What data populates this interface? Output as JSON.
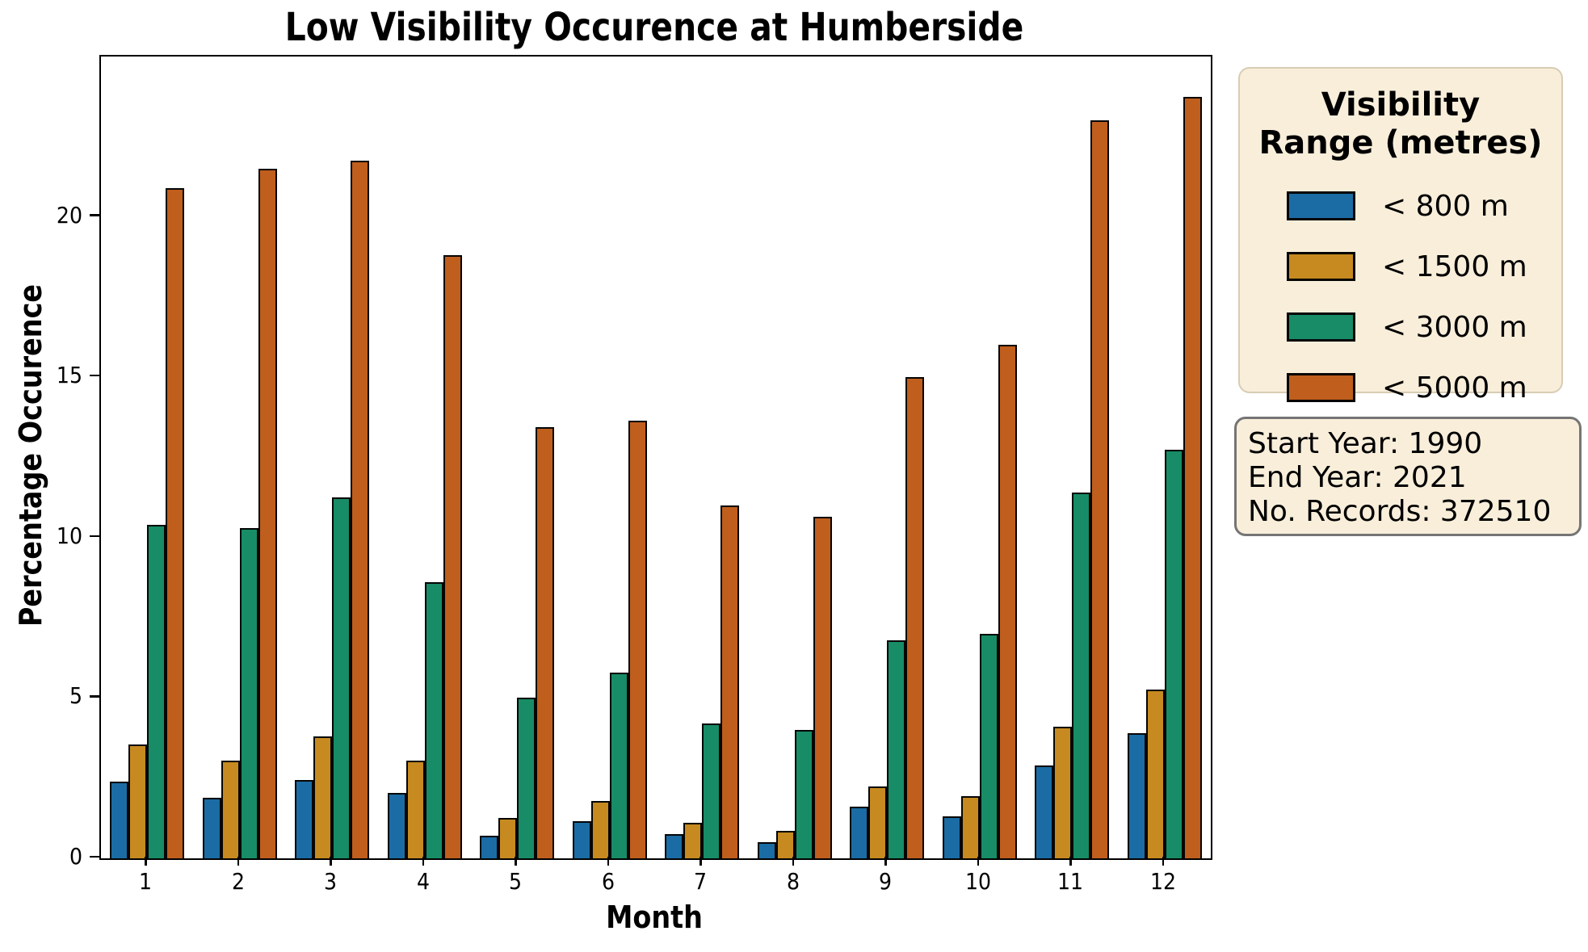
{
  "title": "Low Visibility Occurence at Humberside",
  "axes": {
    "xlabel": "Month",
    "ylabel": "Percentage Occurence",
    "y_ticks": [
      0,
      5,
      10,
      15,
      20
    ],
    "ymax": 25
  },
  "legend": {
    "title_line1": "Visibility",
    "title_line2": "Range (metres)",
    "items": [
      {
        "label": "< 800 m",
        "color": "#1B6CA4",
        "icon": "blue-swatch"
      },
      {
        "label": "< 1500 m",
        "color": "#C68A20",
        "icon": "gold-swatch"
      },
      {
        "label": "< 3000 m",
        "color": "#178C66",
        "icon": "green-swatch"
      },
      {
        "label": "< 5000 m",
        "color": "#BF5E1D",
        "icon": "orange-swatch"
      }
    ]
  },
  "info_box": {
    "lines": [
      "Start Year: 1990",
      "End Year: 2021",
      "No. Records: 372510"
    ]
  },
  "chart_data": {
    "type": "bar",
    "title": "Low Visibility Occurence at Humberside",
    "xlabel": "Month",
    "ylabel": "Percentage Occurence",
    "ylim": [
      0,
      25
    ],
    "grid": false,
    "legend_position": "right-outside",
    "categories": [
      "1",
      "2",
      "3",
      "4",
      "5",
      "6",
      "7",
      "8",
      "9",
      "10",
      "11",
      "12"
    ],
    "series": [
      {
        "name": "< 800 m",
        "color": "#1B6CA4",
        "values": [
          2.4,
          1.9,
          2.45,
          2.05,
          0.7,
          1.15,
          0.75,
          0.5,
          1.6,
          1.3,
          2.9,
          3.9
        ]
      },
      {
        "name": "< 1500 m",
        "color": "#C68A20",
        "values": [
          3.55,
          3.05,
          3.8,
          3.05,
          1.25,
          1.8,
          1.1,
          0.85,
          2.25,
          1.95,
          4.1,
          5.25
        ]
      },
      {
        "name": "< 3000 m",
        "color": "#178C66",
        "values": [
          10.4,
          10.3,
          11.25,
          8.6,
          5.0,
          5.8,
          4.2,
          4.0,
          6.8,
          7.0,
          11.4,
          12.75
        ]
      },
      {
        "name": "< 5000 m",
        "color": "#BF5E1D",
        "values": [
          20.9,
          21.5,
          21.75,
          18.8,
          13.45,
          13.65,
          11.0,
          10.65,
          15.0,
          16.0,
          23.0,
          23.75
        ]
      }
    ]
  },
  "colors": {
    "box_background": "#F8EEDA",
    "legend_border": "#D8CCB4",
    "info_border": "#757575",
    "bar_edge": "#050505",
    "axis": "#000000"
  }
}
